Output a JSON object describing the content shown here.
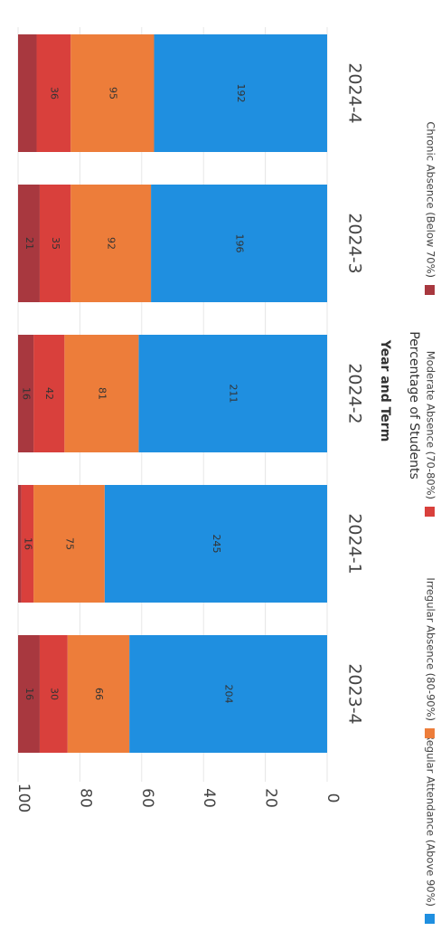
{
  "chart_data": {
    "type": "bar",
    "stacked": true,
    "orientation": "horizontal",
    "title": "",
    "xlabel": "Year and Term",
    "ylabel": "Percentage of Students",
    "ylim": [
      0,
      100
    ],
    "yticks": [
      0,
      20,
      40,
      60,
      80,
      100
    ],
    "grid": true,
    "legend_position": "bottom",
    "categories": [
      "2023-4",
      "2024-1",
      "2024-2",
      "2024-3",
      "2024-4"
    ],
    "series": [
      {
        "name": "Regular Attendance (Above 90%)",
        "color": "#1f8fe0",
        "percent": [
          64,
          72,
          61,
          57,
          56
        ],
        "labels": [
          "204",
          "245",
          "211",
          "196",
          "192"
        ]
      },
      {
        "name": "Irregular Absence (80-90%)",
        "color": "#ed7d3a",
        "percent": [
          20,
          23,
          24,
          26,
          27
        ],
        "labels": [
          "66",
          "75",
          "81",
          "92",
          "95"
        ]
      },
      {
        "name": "Moderate Absence (70-80%)",
        "color": "#d9403c",
        "percent": [
          9,
          4,
          10,
          10,
          11
        ],
        "labels": [
          "30",
          "16",
          "42",
          "35",
          "36"
        ]
      },
      {
        "name": "Chronic Absence (Below 70%)",
        "color": "#a8383f",
        "percent": [
          7,
          1,
          5,
          7,
          6
        ],
        "labels": [
          "16",
          "",
          "16",
          "21",
          ""
        ]
      }
    ]
  }
}
